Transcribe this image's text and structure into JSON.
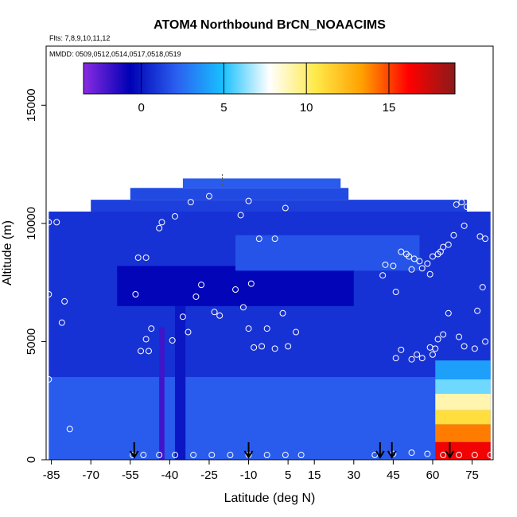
{
  "chart_data": {
    "type": "heatmap",
    "title": "ATOM4 Northbound BrCN_NOAACIMS",
    "subtitle_flights": "Flts: 7,8,9,10,11,12",
    "subtitle_dates": "MMDD: 0509,0512,0514,0517,0518,0519",
    "xlabel": "Latitude (deg N)",
    "ylabel": "Altitude (m)",
    "xlim": [
      -87,
      83
    ],
    "ylim": [
      0,
      17500
    ],
    "x_ticks": [
      -85,
      -70,
      -55,
      -40,
      -25,
      -10,
      5,
      15,
      30,
      45,
      60,
      75
    ],
    "x_tick_labels": [
      "-85",
      "-70",
      "-55",
      "-40",
      "-25",
      "-10",
      "5",
      "15",
      "30",
      "45",
      "60",
      "75"
    ],
    "y_ticks": [
      0,
      5000,
      10000,
      15000
    ],
    "y_tick_labels": [
      "0",
      "5000",
      "10000",
      "15000"
    ],
    "colorbar": {
      "range": [
        -3.5,
        19
      ],
      "ticks": [
        0,
        5,
        10,
        15
      ],
      "tick_labels": [
        "0",
        "5",
        "10",
        "15"
      ],
      "colors": [
        "#8a2be2",
        "#0000b4",
        "#2b5ff0",
        "#18c0ff",
        "#ffffff",
        "#ffe94a",
        "#ffa000",
        "#ff0000",
        "#8b1a1a"
      ]
    },
    "grid": false,
    "curtain": [
      {
        "lat_range": [
          -86,
          82
        ],
        "alt_range": [
          0,
          3500
        ],
        "value": 2.0
      },
      {
        "lat_range": [
          -86,
          82
        ],
        "alt_range": [
          3500,
          10500
        ],
        "value": 0.8
      },
      {
        "lat_range": [
          -70,
          73
        ],
        "alt_range": [
          10500,
          11000
        ],
        "value": 1.2
      },
      {
        "lat_range": [
          -55,
          28
        ],
        "alt_range": [
          11000,
          11500
        ],
        "value": 1.5
      },
      {
        "lat_range": [
          -35,
          25
        ],
        "alt_range": [
          11500,
          11900
        ],
        "value": 2.0
      },
      {
        "lat_range": [
          61,
          82
        ],
        "alt_range": [
          0,
          750
        ],
        "value": 16.5
      },
      {
        "lat_range": [
          61,
          82
        ],
        "alt_range": [
          750,
          1500
        ],
        "value": 14.0
      },
      {
        "lat_range": [
          61,
          82
        ],
        "alt_range": [
          1500,
          2100
        ],
        "value": 11.0
      },
      {
        "lat_range": [
          61,
          82
        ],
        "alt_range": [
          2100,
          2800
        ],
        "value": 9.0
      },
      {
        "lat_range": [
          61,
          82
        ],
        "alt_range": [
          2800,
          3400
        ],
        "value": 6.0
      },
      {
        "lat_range": [
          61,
          82
        ],
        "alt_range": [
          3400,
          4200
        ],
        "value": 4.0
      },
      {
        "lat_range": [
          -44,
          -42
        ],
        "alt_range": [
          0,
          5600
        ],
        "value": -2.0
      },
      {
        "lat_range": [
          -38,
          -34
        ],
        "alt_range": [
          0,
          8000
        ],
        "value": 0.0
      },
      {
        "lat_range": [
          -60,
          30
        ],
        "alt_range": [
          6500,
          8200
        ],
        "value": -0.5
      },
      {
        "lat_range": [
          -15,
          55
        ],
        "alt_range": [
          8000,
          9500
        ],
        "value": 1.8
      }
    ],
    "sample_points": [
      [
        -86,
        10050
      ],
      [
        -83,
        10050
      ],
      [
        -86,
        7000
      ],
      [
        -80,
        6700
      ],
      [
        -81,
        5800
      ],
      [
        -86,
        3400
      ],
      [
        -78,
        1300
      ],
      [
        -52,
        8550
      ],
      [
        -49,
        8550
      ],
      [
        -53,
        7000
      ],
      [
        -44,
        9800
      ],
      [
        -43,
        10050
      ],
      [
        -38,
        10300
      ],
      [
        -32,
        10900
      ],
      [
        -25,
        11150
      ],
      [
        -30,
        6900
      ],
      [
        -28,
        7400
      ],
      [
        -23,
        6250
      ],
      [
        -21,
        6100
      ],
      [
        -15,
        7200
      ],
      [
        -12,
        6450
      ],
      [
        -10,
        5550
      ],
      [
        -35,
        6050
      ],
      [
        -39,
        5050
      ],
      [
        -33,
        5400
      ],
      [
        -47,
        5550
      ],
      [
        -49,
        5100
      ],
      [
        -51,
        4600
      ],
      [
        -48,
        4600
      ],
      [
        -5,
        4800
      ],
      [
        -8,
        4750
      ],
      [
        -3,
        5550
      ],
      [
        0,
        4700
      ],
      [
        3,
        6200
      ],
      [
        5,
        4800
      ],
      [
        8,
        5400
      ],
      [
        -10,
        10950
      ],
      [
        -6,
        9350
      ],
      [
        0,
        9350
      ],
      [
        4,
        10650
      ],
      [
        -13,
        10350
      ],
      [
        -9,
        7450
      ],
      [
        -54,
        200
      ],
      [
        -50,
        200
      ],
      [
        -44,
        200
      ],
      [
        -38,
        200
      ],
      [
        -31,
        200
      ],
      [
        -24,
        200
      ],
      [
        -17,
        200
      ],
      [
        -10,
        200
      ],
      [
        -3,
        200
      ],
      [
        4,
        200
      ],
      [
        10,
        200
      ],
      [
        41,
        7800
      ],
      [
        42,
        8250
      ],
      [
        45,
        8200
      ],
      [
        46,
        7100
      ],
      [
        48,
        8800
      ],
      [
        50,
        8700
      ],
      [
        51,
        8600
      ],
      [
        53,
        8500
      ],
      [
        55,
        8400
      ],
      [
        52,
        8050
      ],
      [
        56,
        8100
      ],
      [
        58,
        8300
      ],
      [
        59,
        7850
      ],
      [
        60,
        8600
      ],
      [
        62,
        8700
      ],
      [
        63,
        8800
      ],
      [
        64,
        9000
      ],
      [
        66,
        9100
      ],
      [
        68,
        9500
      ],
      [
        72,
        9900
      ],
      [
        69,
        10800
      ],
      [
        71,
        10900
      ],
      [
        73,
        10700
      ],
      [
        74,
        11050
      ],
      [
        78,
        9450
      ],
      [
        80,
        9350
      ],
      [
        79,
        7300
      ],
      [
        77,
        6300
      ],
      [
        66,
        6200
      ],
      [
        64,
        5300
      ],
      [
        62,
        5100
      ],
      [
        70,
        5200
      ],
      [
        72,
        4800
      ],
      [
        76,
        4700
      ],
      [
        80,
        5000
      ],
      [
        59,
        4750
      ],
      [
        61,
        4700
      ],
      [
        56,
        4300
      ],
      [
        60,
        4450
      ],
      [
        48,
        4650
      ],
      [
        46,
        4300
      ],
      [
        52,
        4250
      ],
      [
        54,
        4450
      ],
      [
        38,
        200
      ],
      [
        45,
        250
      ],
      [
        52,
        300
      ],
      [
        58,
        250
      ],
      [
        64,
        200
      ],
      [
        70,
        200
      ],
      [
        76,
        200
      ],
      [
        82,
        200
      ]
    ],
    "arrow_latitudes": [
      -53.5,
      -10,
      40,
      44.5,
      66.5
    ],
    "top_marker_latitude": -20
  }
}
